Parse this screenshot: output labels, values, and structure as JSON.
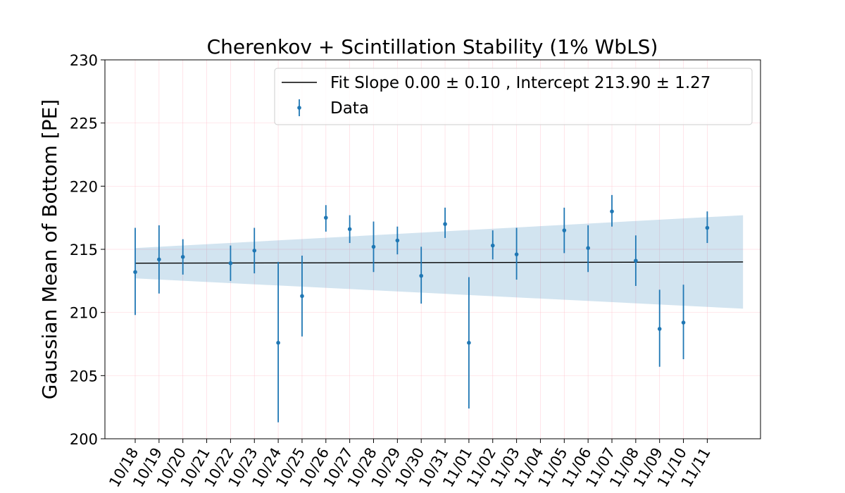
{
  "chart_data": {
    "type": "scatter",
    "title": "Cherenkov + Scintillation Stability (1% WbLS)",
    "xlabel": "",
    "ylabel": "Gaussian Mean of Bottom [PE]",
    "ylim": [
      200,
      230
    ],
    "yticks": [
      200,
      205,
      210,
      215,
      220,
      225,
      230
    ],
    "grid": true,
    "legend_position": "top-right",
    "categories": [
      "10/18",
      "10/19",
      "10/20",
      "10/21",
      "10/22",
      "10/23",
      "10/24",
      "10/25",
      "10/26",
      "10/27",
      "10/28",
      "10/29",
      "10/30",
      "10/31",
      "11/01",
      "11/02",
      "11/03",
      "11/04",
      "11/05",
      "11/06",
      "11/07",
      "11/08",
      "11/09",
      "11/10",
      "11/11"
    ],
    "series": [
      {
        "name": "Data",
        "color": "#1f77b4",
        "points": [
          {
            "x": "10/18",
            "y": 213.2,
            "low": 209.8,
            "high": 216.7
          },
          {
            "x": "10/19",
            "y": 214.2,
            "low": 211.5,
            "high": 216.9
          },
          {
            "x": "10/20",
            "y": 214.4,
            "low": 213.0,
            "high": 215.8
          },
          {
            "x": "10/22",
            "y": 213.9,
            "low": 212.5,
            "high": 215.3
          },
          {
            "x": "10/23",
            "y": 214.9,
            "low": 213.1,
            "high": 216.7
          },
          {
            "x": "10/24",
            "y": 207.6,
            "low": 201.3,
            "high": 214.0
          },
          {
            "x": "10/25",
            "y": 211.3,
            "low": 208.1,
            "high": 214.5
          },
          {
            "x": "10/26",
            "y": 217.5,
            "low": 216.4,
            "high": 218.5
          },
          {
            "x": "10/27",
            "y": 216.6,
            "low": 215.5,
            "high": 217.7
          },
          {
            "x": "10/28",
            "y": 215.2,
            "low": 213.2,
            "high": 217.2
          },
          {
            "x": "10/29",
            "y": 215.7,
            "low": 214.6,
            "high": 216.8
          },
          {
            "x": "10/30",
            "y": 212.9,
            "low": 210.7,
            "high": 215.2
          },
          {
            "x": "10/31",
            "y": 217.0,
            "low": 215.9,
            "high": 218.3
          },
          {
            "x": "11/01",
            "y": 207.6,
            "low": 202.4,
            "high": 212.8
          },
          {
            "x": "11/02",
            "y": 215.3,
            "low": 214.2,
            "high": 216.5
          },
          {
            "x": "11/03",
            "y": 214.6,
            "low": 212.6,
            "high": 216.7
          },
          {
            "x": "11/05",
            "y": 216.5,
            "low": 214.7,
            "high": 218.3
          },
          {
            "x": "11/06",
            "y": 215.1,
            "low": 213.2,
            "high": 216.9
          },
          {
            "x": "11/07",
            "y": 218.0,
            "low": 216.8,
            "high": 219.3
          },
          {
            "x": "11/08",
            "y": 214.1,
            "low": 212.1,
            "high": 216.1
          },
          {
            "x": "11/09",
            "y": 208.7,
            "low": 205.7,
            "high": 211.8
          },
          {
            "x": "11/10",
            "y": 209.2,
            "low": 206.3,
            "high": 212.2
          },
          {
            "x": "11/11",
            "y": 216.7,
            "low": 215.5,
            "high": 218.0
          }
        ]
      }
    ],
    "fit": {
      "name": "Fit Slope 0.00 ± 0.10 , Intercept 213.90 ± 1.27",
      "color": "#000000",
      "x_start": 0,
      "x_end": 25.5,
      "y_start": 213.9,
      "y_end": 214.0,
      "band_upper_start": 215.1,
      "band_upper_end": 217.7,
      "band_lower_start": 212.7,
      "band_lower_end": 210.3,
      "band_color": "#1f77b4"
    },
    "legend": [
      {
        "label": "Fit Slope 0.00 ± 0.10 , Intercept 213.90 ± 1.27",
        "kind": "line"
      },
      {
        "label": "Data",
        "kind": "errorbar"
      }
    ]
  }
}
